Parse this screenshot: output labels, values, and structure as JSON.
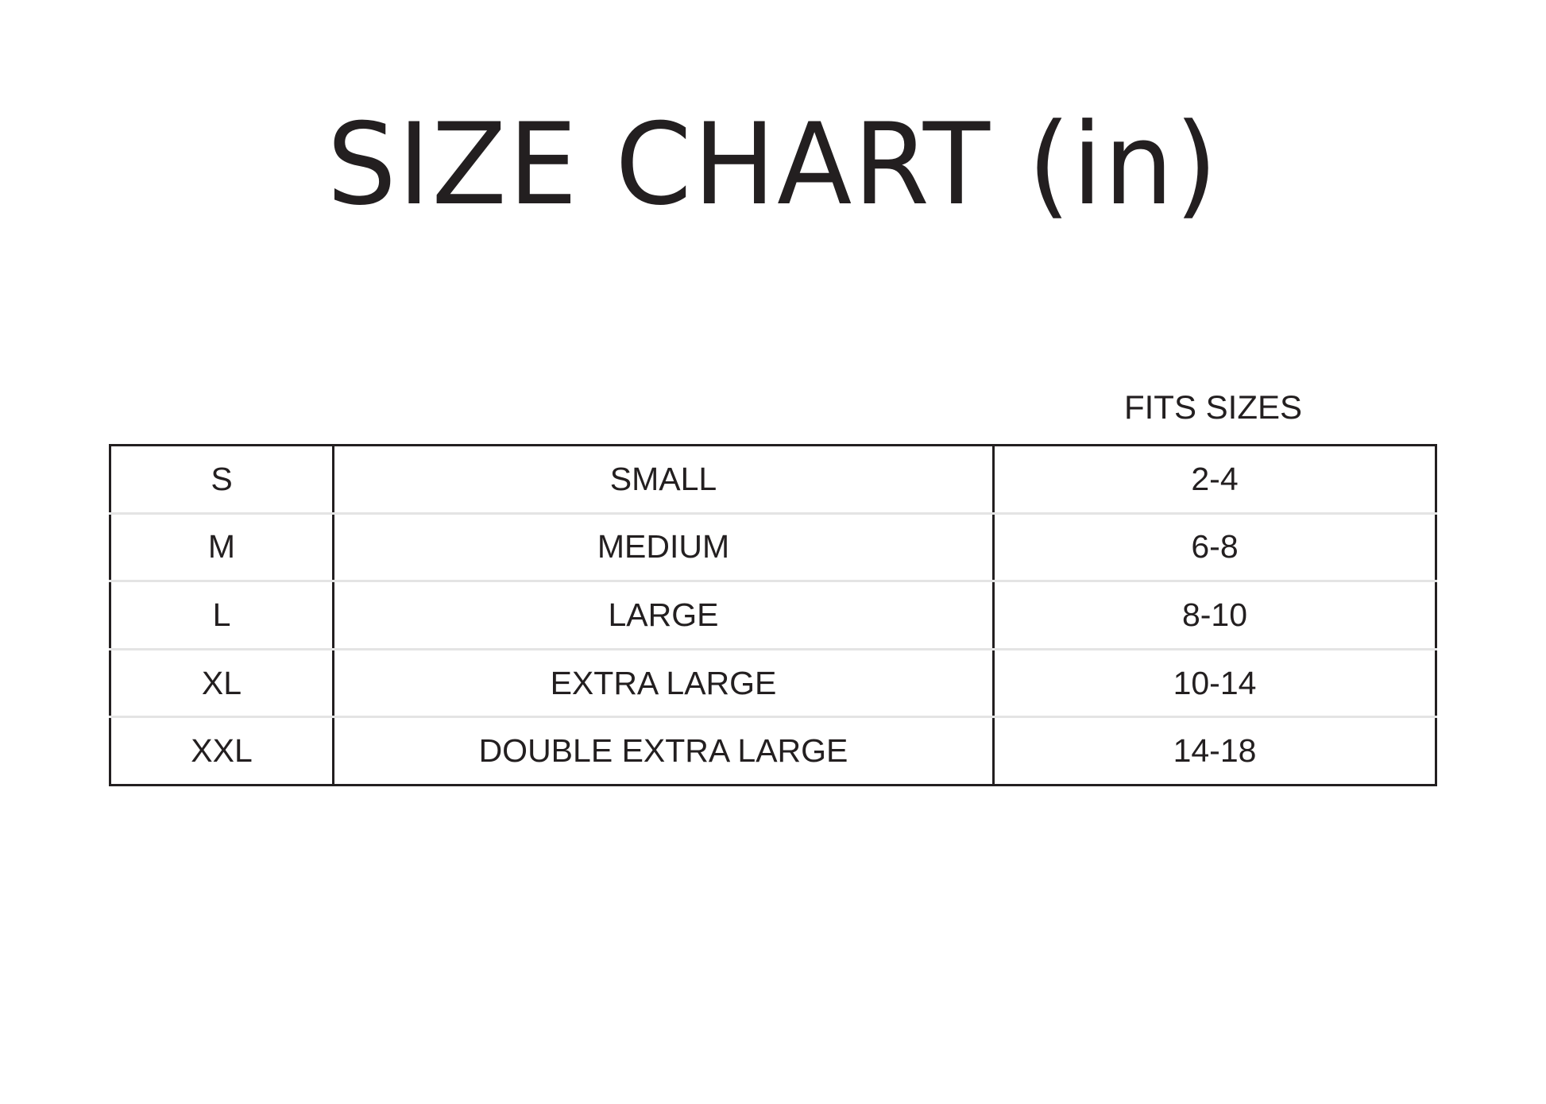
{
  "title": "SIZE CHART (in)",
  "column_header": "FITS SIZES",
  "rows": [
    {
      "code": "S",
      "name": "SMALL",
      "fits": "2-4"
    },
    {
      "code": "M",
      "name": "MEDIUM",
      "fits": "6-8"
    },
    {
      "code": "L",
      "name": "LARGE",
      "fits": "8-10"
    },
    {
      "code": "XL",
      "name": "EXTRA LARGE",
      "fits": "10-14"
    },
    {
      "code": "XXL",
      "name": "DOUBLE EXTRA LARGE",
      "fits": "14-18"
    }
  ]
}
